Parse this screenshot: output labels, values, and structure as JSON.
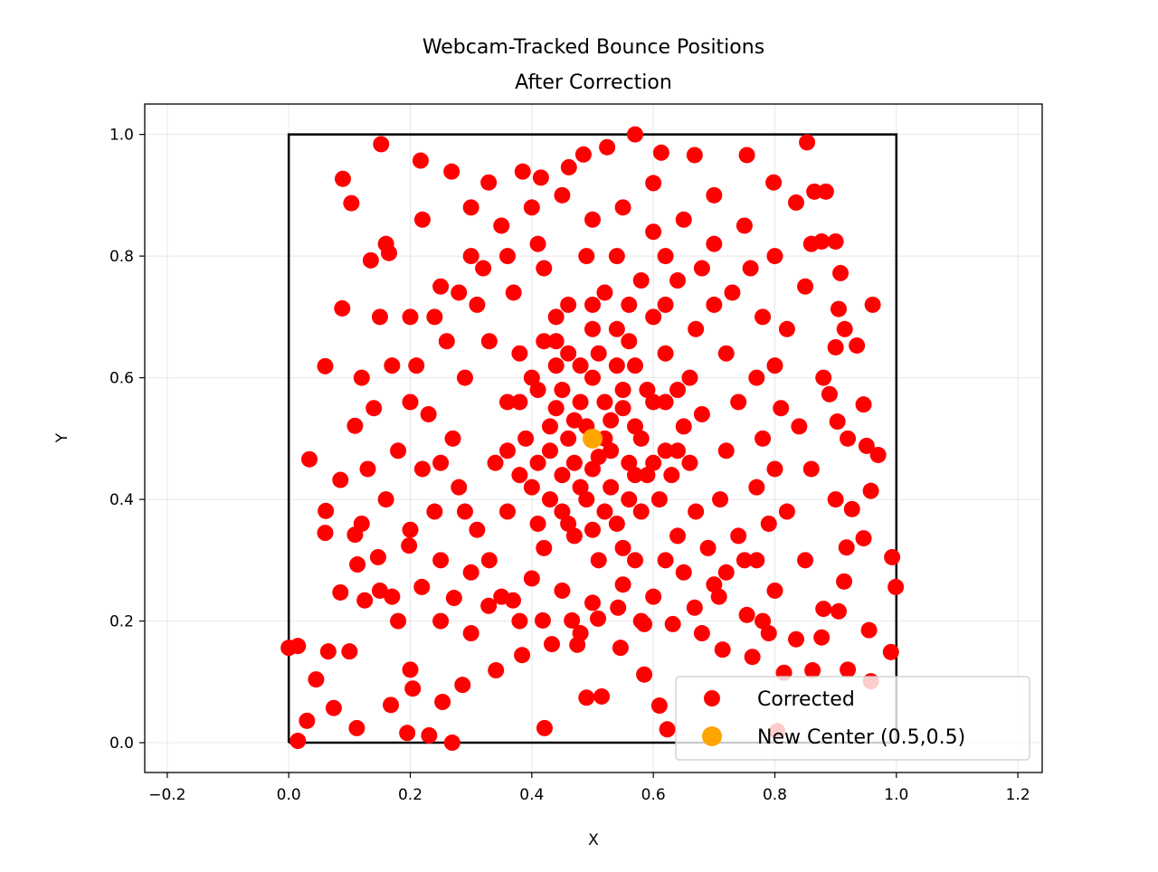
{
  "chart_data": {
    "type": "scatter",
    "title": "Webcam-Tracked Bounce Positions\nAfter Correction",
    "title_lines": [
      "Webcam-Tracked Bounce Positions",
      "After Correction"
    ],
    "xlabel": "X",
    "ylabel": "Y",
    "xlim": [
      -0.237,
      1.24
    ],
    "ylim": [
      -0.049,
      1.05
    ],
    "xticks": [
      -0.2,
      0.0,
      0.2,
      0.4,
      0.6,
      0.8,
      1.0,
      1.2
    ],
    "xtick_labels": [
      "−0.2",
      "0.0",
      "0.2",
      "0.4",
      "0.6",
      "0.8",
      "1.0",
      "1.2"
    ],
    "yticks": [
      0.0,
      0.2,
      0.4,
      0.6,
      0.8,
      1.0
    ],
    "ytick_labels": [
      "0.0",
      "0.2",
      "0.4",
      "0.6",
      "0.8",
      "1.0"
    ],
    "grid": true,
    "legend_placement": "lower-right",
    "boundary_square": [
      [
        0,
        0
      ],
      [
        1,
        0
      ],
      [
        1,
        1
      ],
      [
        0,
        1
      ],
      [
        0,
        0
      ]
    ],
    "colors": {
      "corrected": "#ff0000",
      "center": "#ffa500",
      "boundary": "#000000"
    },
    "series": [
      {
        "name": "Corrected",
        "color": "#ff0000",
        "points": [
          [
            0,
            0.156
          ],
          [
            0.015,
            0.159
          ],
          [
            0.015,
            0.003
          ],
          [
            0.269,
            0
          ],
          [
            0.57,
            1.0
          ],
          [
            0.152,
            0.984
          ],
          [
            0.853,
            0.987
          ],
          [
            0.993,
            0.305
          ],
          [
            0.999,
            0.256
          ],
          [
            0.991,
            0.149
          ],
          [
            0.961,
            0.72
          ],
          [
            0.97,
            0.473
          ],
          [
            0.089,
            0.927
          ],
          [
            0.06,
            0.619
          ],
          [
            0.034,
            0.466
          ],
          [
            0.421,
            0.024
          ],
          [
            0.253,
            0.067
          ],
          [
            0.195,
            0.016
          ],
          [
            0.231,
            0.012
          ],
          [
            0.03,
            0.036
          ],
          [
            0.112,
            0.024
          ],
          [
            0.49,
            0.074
          ],
          [
            0.515,
            0.076
          ],
          [
            0.61,
            0.061
          ],
          [
            0.623,
            0.022
          ],
          [
            0.804,
            0.019
          ],
          [
            0.754,
            0.966
          ],
          [
            0.668,
            0.966
          ],
          [
            0.613,
            0.97
          ],
          [
            0.524,
            0.979
          ],
          [
            0.485,
            0.967
          ],
          [
            0.877,
            0.824
          ],
          [
            0.9,
            0.824
          ],
          [
            0.915,
            0.68
          ],
          [
            0.946,
            0.556
          ],
          [
            0.951,
            0.488
          ],
          [
            0.958,
            0.414
          ],
          [
            0.946,
            0.336
          ],
          [
            0.918,
            0.321
          ],
          [
            0.955,
            0.185
          ],
          [
            0.958,
            0.101
          ],
          [
            0.862,
            0.119
          ],
          [
            0.815,
            0.115
          ],
          [
            0.763,
            0.141
          ],
          [
            0.714,
            0.153
          ],
          [
            0.546,
            0.156
          ],
          [
            0.585,
            0.112
          ],
          [
            0.475,
            0.161
          ],
          [
            0.433,
            0.162
          ],
          [
            0.384,
            0.144
          ],
          [
            0.341,
            0.119
          ],
          [
            0.286,
            0.095
          ],
          [
            0.204,
            0.089
          ],
          [
            0.168,
            0.062
          ],
          [
            0.074,
            0.057
          ],
          [
            0.045,
            0.104
          ],
          [
            0.065,
            0.15
          ],
          [
            0.085,
            0.247
          ],
          [
            0.061,
            0.381
          ],
          [
            0.085,
            0.432
          ],
          [
            0.109,
            0.521
          ],
          [
            0.088,
            0.714
          ],
          [
            0.103,
            0.887
          ],
          [
            0.135,
            0.793
          ],
          [
            0.165,
            0.805
          ],
          [
            0.217,
            0.957
          ],
          [
            0.268,
            0.939
          ],
          [
            0.329,
            0.921
          ],
          [
            0.385,
            0.939
          ],
          [
            0.415,
            0.929
          ],
          [
            0.461,
            0.946
          ],
          [
            0.798,
            0.921
          ],
          [
            0.835,
            0.888
          ],
          [
            0.865,
            0.906
          ],
          [
            0.884,
            0.906
          ],
          [
            0.908,
            0.772
          ],
          [
            0.905,
            0.713
          ],
          [
            0.935,
            0.653
          ],
          [
            0.89,
            0.573
          ],
          [
            0.903,
            0.528
          ],
          [
            0.927,
            0.384
          ],
          [
            0.914,
            0.265
          ],
          [
            0.905,
            0.216
          ],
          [
            0.877,
            0.173
          ],
          [
            0.835,
            0.17
          ],
          [
            0.79,
            0.18
          ],
          [
            0.754,
            0.21
          ],
          [
            0.708,
            0.24
          ],
          [
            0.668,
            0.222
          ],
          [
            0.632,
            0.195
          ],
          [
            0.585,
            0.195
          ],
          [
            0.542,
            0.222
          ],
          [
            0.509,
            0.204
          ],
          [
            0.466,
            0.201
          ],
          [
            0.418,
            0.201
          ],
          [
            0.369,
            0.234
          ],
          [
            0.329,
            0.225
          ],
          [
            0.272,
            0.238
          ],
          [
            0.219,
            0.256
          ],
          [
            0.17,
            0.24
          ],
          [
            0.125,
            0.234
          ],
          [
            0.113,
            0.293
          ],
          [
            0.147,
            0.305
          ],
          [
            0.198,
            0.324
          ],
          [
            0.06,
            0.345
          ],
          [
            0.109,
            0.342
          ],
          [
            0.2,
            0.7
          ],
          [
            0.25,
            0.75
          ],
          [
            0.3,
            0.8
          ],
          [
            0.35,
            0.85
          ],
          [
            0.4,
            0.88
          ],
          [
            0.45,
            0.9
          ],
          [
            0.5,
            0.86
          ],
          [
            0.55,
            0.88
          ],
          [
            0.6,
            0.84
          ],
          [
            0.65,
            0.86
          ],
          [
            0.7,
            0.82
          ],
          [
            0.75,
            0.85
          ],
          [
            0.8,
            0.8
          ],
          [
            0.85,
            0.75
          ],
          [
            0.82,
            0.68
          ],
          [
            0.88,
            0.6
          ],
          [
            0.84,
            0.52
          ],
          [
            0.86,
            0.45
          ],
          [
            0.82,
            0.38
          ],
          [
            0.85,
            0.3
          ],
          [
            0.8,
            0.25
          ],
          [
            0.75,
            0.3
          ],
          [
            0.7,
            0.26
          ],
          [
            0.65,
            0.28
          ],
          [
            0.6,
            0.24
          ],
          [
            0.55,
            0.26
          ],
          [
            0.5,
            0.23
          ],
          [
            0.45,
            0.25
          ],
          [
            0.4,
            0.27
          ],
          [
            0.35,
            0.24
          ],
          [
            0.3,
            0.28
          ],
          [
            0.25,
            0.3
          ],
          [
            0.2,
            0.35
          ],
          [
            0.16,
            0.4
          ],
          [
            0.18,
            0.48
          ],
          [
            0.14,
            0.55
          ],
          [
            0.17,
            0.62
          ],
          [
            0.2,
            0.56
          ],
          [
            0.22,
            0.45
          ],
          [
            0.24,
            0.38
          ],
          [
            0.27,
            0.5
          ],
          [
            0.29,
            0.6
          ],
          [
            0.26,
            0.66
          ],
          [
            0.31,
            0.72
          ],
          [
            0.33,
            0.66
          ],
          [
            0.28,
            0.42
          ],
          [
            0.31,
            0.35
          ],
          [
            0.34,
            0.46
          ],
          [
            0.36,
            0.56
          ],
          [
            0.38,
            0.64
          ],
          [
            0.37,
            0.74
          ],
          [
            0.42,
            0.78
          ],
          [
            0.44,
            0.7
          ],
          [
            0.46,
            0.64
          ],
          [
            0.48,
            0.56
          ],
          [
            0.47,
            0.46
          ],
          [
            0.45,
            0.38
          ],
          [
            0.42,
            0.32
          ],
          [
            0.4,
            0.42
          ],
          [
            0.39,
            0.5
          ],
          [
            0.41,
            0.58
          ],
          [
            0.43,
            0.48
          ],
          [
            0.44,
            0.55
          ],
          [
            0.5,
            0.6
          ],
          [
            0.52,
            0.5
          ],
          [
            0.53,
            0.42
          ],
          [
            0.5,
            0.35
          ],
          [
            0.55,
            0.32
          ],
          [
            0.58,
            0.38
          ],
          [
            0.56,
            0.46
          ],
          [
            0.55,
            0.55
          ],
          [
            0.57,
            0.62
          ],
          [
            0.54,
            0.68
          ],
          [
            0.52,
            0.74
          ],
          [
            0.49,
            0.8
          ],
          [
            0.58,
            0.76
          ],
          [
            0.6,
            0.7
          ],
          [
            0.62,
            0.64
          ],
          [
            0.6,
            0.56
          ],
          [
            0.62,
            0.48
          ],
          [
            0.61,
            0.4
          ],
          [
            0.64,
            0.34
          ],
          [
            0.67,
            0.38
          ],
          [
            0.66,
            0.46
          ],
          [
            0.68,
            0.54
          ],
          [
            0.66,
            0.6
          ],
          [
            0.67,
            0.68
          ],
          [
            0.64,
            0.76
          ],
          [
            0.7,
            0.72
          ],
          [
            0.72,
            0.64
          ],
          [
            0.74,
            0.56
          ],
          [
            0.72,
            0.48
          ],
          [
            0.71,
            0.4
          ],
          [
            0.74,
            0.34
          ],
          [
            0.77,
            0.42
          ],
          [
            0.78,
            0.5
          ],
          [
            0.77,
            0.6
          ],
          [
            0.78,
            0.7
          ],
          [
            0.76,
            0.78
          ],
          [
            0.48,
            0.42
          ],
          [
            0.46,
            0.5
          ],
          [
            0.5,
            0.45
          ],
          [
            0.52,
            0.56
          ],
          [
            0.48,
            0.62
          ],
          [
            0.44,
            0.62
          ],
          [
            0.42,
            0.66
          ],
          [
            0.4,
            0.6
          ],
          [
            0.38,
            0.44
          ],
          [
            0.36,
            0.38
          ],
          [
            0.52,
            0.38
          ],
          [
            0.56,
            0.4
          ],
          [
            0.58,
            0.5
          ],
          [
            0.59,
            0.58
          ],
          [
            0.54,
            0.62
          ],
          [
            0.5,
            0.68
          ],
          [
            0.46,
            0.72
          ],
          [
            0.56,
            0.72
          ],
          [
            0.62,
            0.72
          ],
          [
            0.64,
            0.58
          ],
          [
            0.65,
            0.52
          ],
          [
            0.63,
            0.44
          ],
          [
            0.6,
            0.46
          ],
          [
            0.57,
            0.44
          ],
          [
            0.53,
            0.48
          ],
          [
            0.49,
            0.52
          ],
          [
            0.45,
            0.44
          ],
          [
            0.43,
            0.4
          ],
          [
            0.41,
            0.36
          ],
          [
            0.47,
            0.34
          ],
          [
            0.51,
            0.3
          ],
          [
            0.57,
            0.3
          ],
          [
            0.62,
            0.3
          ],
          [
            0.69,
            0.32
          ],
          [
            0.72,
            0.28
          ],
          [
            0.33,
            0.3
          ],
          [
            0.29,
            0.38
          ],
          [
            0.25,
            0.46
          ],
          [
            0.23,
            0.54
          ],
          [
            0.21,
            0.62
          ],
          [
            0.24,
            0.7
          ],
          [
            0.28,
            0.74
          ],
          [
            0.32,
            0.78
          ],
          [
            0.36,
            0.8
          ],
          [
            0.41,
            0.82
          ],
          [
            0.54,
            0.8
          ],
          [
            0.62,
            0.8
          ],
          [
            0.68,
            0.78
          ],
          [
            0.73,
            0.74
          ],
          [
            0.8,
            0.62
          ],
          [
            0.81,
            0.55
          ],
          [
            0.8,
            0.45
          ],
          [
            0.79,
            0.36
          ],
          [
            0.77,
            0.3
          ],
          [
            0.15,
            0.7
          ],
          [
            0.13,
            0.45
          ],
          [
            0.12,
            0.36
          ],
          [
            0.15,
            0.25
          ],
          [
            0.18,
            0.2
          ],
          [
            0.25,
            0.2
          ],
          [
            0.3,
            0.18
          ],
          [
            0.38,
            0.2
          ],
          [
            0.48,
            0.18
          ],
          [
            0.58,
            0.2
          ],
          [
            0.68,
            0.18
          ],
          [
            0.78,
            0.2
          ],
          [
            0.88,
            0.22
          ],
          [
            0.9,
            0.4
          ],
          [
            0.92,
            0.5
          ],
          [
            0.9,
            0.65
          ],
          [
            0.86,
            0.82
          ],
          [
            0.7,
            0.9
          ],
          [
            0.6,
            0.92
          ],
          [
            0.3,
            0.88
          ],
          [
            0.22,
            0.86
          ],
          [
            0.16,
            0.82
          ],
          [
            0.12,
            0.6
          ],
          [
            0.1,
            0.15
          ],
          [
            0.2,
            0.12
          ],
          [
            0.92,
            0.12
          ],
          [
            0.47,
            0.53
          ],
          [
            0.53,
            0.53
          ],
          [
            0.51,
            0.47
          ],
          [
            0.45,
            0.58
          ],
          [
            0.55,
            0.58
          ],
          [
            0.43,
            0.52
          ],
          [
            0.57,
            0.52
          ],
          [
            0.49,
            0.4
          ],
          [
            0.51,
            0.64
          ],
          [
            0.41,
            0.46
          ],
          [
            0.59,
            0.44
          ],
          [
            0.44,
            0.66
          ],
          [
            0.56,
            0.66
          ],
          [
            0.38,
            0.56
          ],
          [
            0.62,
            0.56
          ],
          [
            0.46,
            0.36
          ],
          [
            0.54,
            0.36
          ],
          [
            0.5,
            0.72
          ],
          [
            0.36,
            0.48
          ],
          [
            0.64,
            0.48
          ]
        ]
      },
      {
        "name": "New Center (0.5,0.5)",
        "color": "#ffa500",
        "points": [
          [
            0.5,
            0.5
          ]
        ]
      }
    ]
  }
}
